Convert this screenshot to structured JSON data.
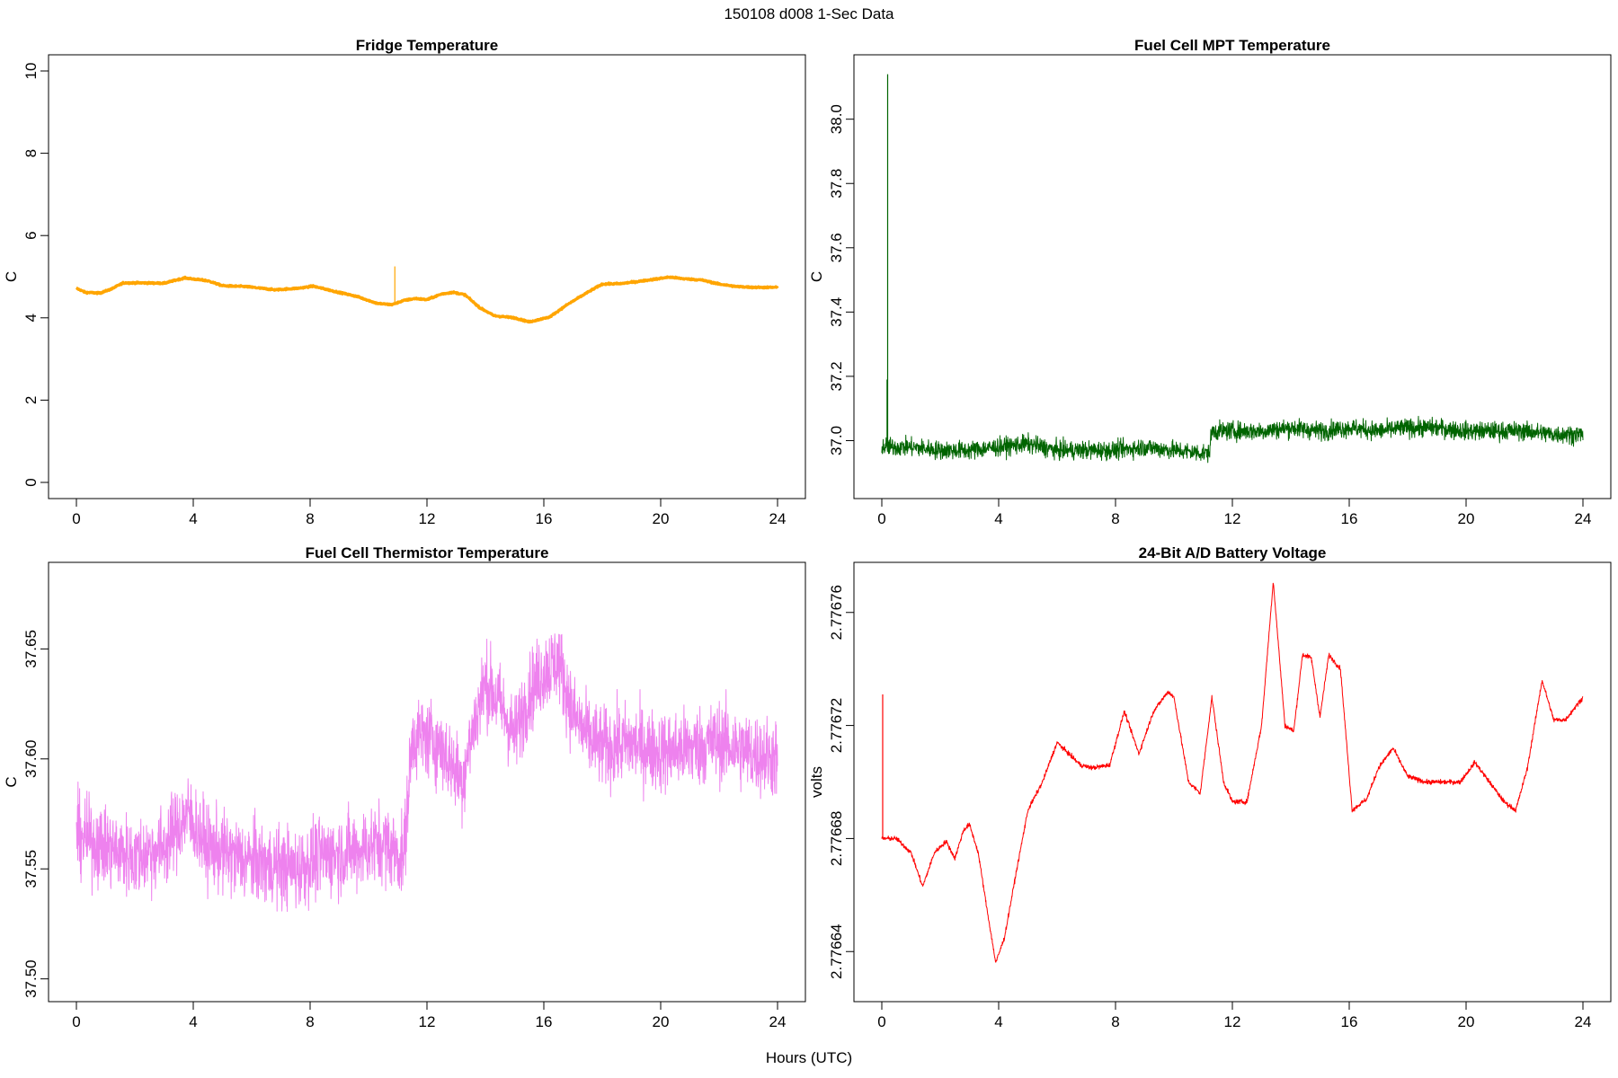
{
  "figure": {
    "title": "150108   d008   1-Sec Data",
    "xlabel": "Hours (UTC)"
  },
  "chart_data": [
    {
      "type": "line",
      "title": "Fridge Temperature",
      "ylabel": "C",
      "color": "#FFA500",
      "xlim": [
        0,
        24
      ],
      "ylim": [
        0,
        10
      ],
      "xticks": [
        0,
        4,
        8,
        12,
        16,
        20,
        24
      ],
      "yticks": [
        0,
        2,
        4,
        6,
        8,
        10
      ],
      "ytick_labels": [
        "0",
        "2",
        "4",
        "6",
        "8",
        "10"
      ],
      "noise": 0.02,
      "series": [
        {
          "x": [
            0,
            0.3,
            0.8,
            1.2,
            1.6,
            2.2,
            3.0,
            3.7,
            4.5,
            5.0,
            5.8,
            6.8,
            7.6,
            8.1,
            8.8,
            9.6,
            10.3,
            10.8,
            11.2,
            11.6,
            12.0,
            12.5,
            12.9,
            13.3,
            13.8,
            14.3,
            15.0,
            15.5,
            16.2,
            16.8,
            17.5,
            18.0,
            18.6,
            19.2,
            19.7,
            20.3,
            20.8,
            21.4,
            22.0,
            22.6,
            23.2,
            24.0
          ],
          "y": [
            4.72,
            4.62,
            4.6,
            4.7,
            4.85,
            4.85,
            4.84,
            4.97,
            4.9,
            4.78,
            4.76,
            4.68,
            4.72,
            4.77,
            4.65,
            4.52,
            4.35,
            4.32,
            4.42,
            4.47,
            4.44,
            4.58,
            4.62,
            4.56,
            4.25,
            4.05,
            4.0,
            3.9,
            4.02,
            4.32,
            4.62,
            4.82,
            4.83,
            4.88,
            4.93,
            4.99,
            4.95,
            4.92,
            4.82,
            4.76,
            4.74,
            4.74
          ]
        }
      ],
      "spikes": [
        {
          "x": 10.9,
          "y": 5.25
        }
      ]
    },
    {
      "type": "line",
      "title": "Fuel Cell MPT Temperature",
      "ylabel": "C",
      "color": "#006400",
      "xlim": [
        0,
        24
      ],
      "ylim": [
        36.87,
        38.15
      ],
      "xticks": [
        0,
        4,
        8,
        12,
        16,
        20,
        24
      ],
      "yticks": [
        37.0,
        37.2,
        37.4,
        37.6,
        37.8,
        38.0
      ],
      "ytick_labels": [
        "37.0",
        "37.2",
        "37.4",
        "37.6",
        "37.8",
        "38.0"
      ],
      "noise": 0.028,
      "series": [
        {
          "x": [
            0,
            1,
            2,
            3,
            4,
            5,
            6,
            7,
            8,
            9,
            10,
            11.2,
            11.3,
            12,
            13,
            14,
            15,
            16,
            17,
            18,
            19,
            20,
            21,
            22,
            23,
            24
          ],
          "y": [
            36.98,
            36.98,
            36.97,
            36.97,
            36.98,
            36.99,
            36.97,
            36.97,
            36.97,
            36.98,
            36.97,
            36.96,
            37.03,
            37.03,
            37.03,
            37.04,
            37.03,
            37.04,
            37.03,
            37.04,
            37.04,
            37.03,
            37.03,
            37.03,
            37.02,
            37.02
          ]
        }
      ],
      "spikes": [
        {
          "x": 0.2,
          "y": 38.14
        },
        {
          "x": 0.18,
          "y": 37.19
        }
      ]
    },
    {
      "type": "line",
      "title": "Fuel Cell Thermistor Temperature",
      "ylabel": "C",
      "color": "#EE82EE",
      "xlim": [
        0,
        24
      ],
      "ylim": [
        37.497,
        37.682
      ],
      "xticks": [
        0,
        4,
        8,
        12,
        16,
        20,
        24
      ],
      "yticks": [
        37.5,
        37.55,
        37.6,
        37.65
      ],
      "ytick_labels": [
        "37.50",
        "37.55",
        "37.60",
        "37.65"
      ],
      "noise": 0.018,
      "series": [
        {
          "x": [
            0,
            1,
            2,
            3,
            3.8,
            4.5,
            5.5,
            6.5,
            7.5,
            8.5,
            9.5,
            10.5,
            11.2,
            11.5,
            12,
            12.5,
            13.2,
            13.6,
            14,
            14.5,
            15,
            15.5,
            16,
            16.5,
            17,
            17.5,
            18,
            19,
            20,
            21,
            22,
            23,
            24
          ],
          "y": [
            37.565,
            37.56,
            37.555,
            37.56,
            37.575,
            37.56,
            37.555,
            37.552,
            37.55,
            37.556,
            37.558,
            37.562,
            37.555,
            37.61,
            37.61,
            37.605,
            37.59,
            37.615,
            37.635,
            37.625,
            37.61,
            37.63,
            37.64,
            37.645,
            37.62,
            37.61,
            37.605,
            37.607,
            37.603,
            37.605,
            37.608,
            37.603,
            37.6
          ]
        }
      ],
      "spikes": []
    },
    {
      "type": "line",
      "title": "24-Bit A/D Battery Voltage",
      "ylabel": "volts",
      "color": "#FF0000",
      "xlim": [
        0,
        24
      ],
      "ylim": [
        2.776628,
        2.776772
      ],
      "xticks": [
        0,
        4,
        8,
        12,
        16,
        20,
        24
      ],
      "yticks": [
        2.77664,
        2.77668,
        2.77672,
        2.77676
      ],
      "ytick_labels": [
        "2.77664",
        "2.77668",
        "2.77672",
        "2.77676"
      ],
      "noise": 8e-07,
      "series": [
        {
          "x": [
            0,
            0.5,
            1.0,
            1.4,
            1.8,
            2.2,
            2.5,
            2.8,
            3.0,
            3.3,
            3.6,
            3.9,
            4.2,
            4.6,
            5.0,
            5.5,
            6.0,
            6.2,
            6.8,
            7.2,
            7.8,
            8.3,
            8.8,
            9.3,
            9.8,
            10.0,
            10.5,
            10.9,
            11.3,
            11.7,
            12.0,
            12.5,
            13.0,
            13.4,
            13.8,
            14.1,
            14.4,
            14.7,
            15.0,
            15.3,
            15.7,
            16.1,
            16.6,
            17.0,
            17.5,
            18.0,
            18.6,
            19.2,
            19.8,
            20.3,
            20.8,
            21.3,
            21.7,
            22.1,
            22.6,
            23.0,
            23.4,
            24.0
          ],
          "y": [
            2.77668,
            2.77668,
            2.776675,
            2.776663,
            2.776675,
            2.776679,
            2.776673,
            2.776683,
            2.776685,
            2.776675,
            2.776655,
            2.776636,
            2.776645,
            2.776668,
            2.77669,
            2.7767,
            2.776714,
            2.776712,
            2.776706,
            2.776705,
            2.776706,
            2.776725,
            2.77671,
            2.776725,
            2.776732,
            2.77673,
            2.7767,
            2.776696,
            2.77673,
            2.7767,
            2.776693,
            2.776693,
            2.77672,
            2.776771,
            2.77672,
            2.776718,
            2.776745,
            2.776744,
            2.776723,
            2.776745,
            2.77674,
            2.77669,
            2.776694,
            2.776705,
            2.776712,
            2.776702,
            2.7767,
            2.7767,
            2.7767,
            2.776707,
            2.7767,
            2.776693,
            2.77669,
            2.776705,
            2.776736,
            2.776722,
            2.776722,
            2.77673
          ]
        }
      ],
      "spikes": [
        {
          "x": 0.03,
          "y": 2.776731
        }
      ]
    }
  ]
}
